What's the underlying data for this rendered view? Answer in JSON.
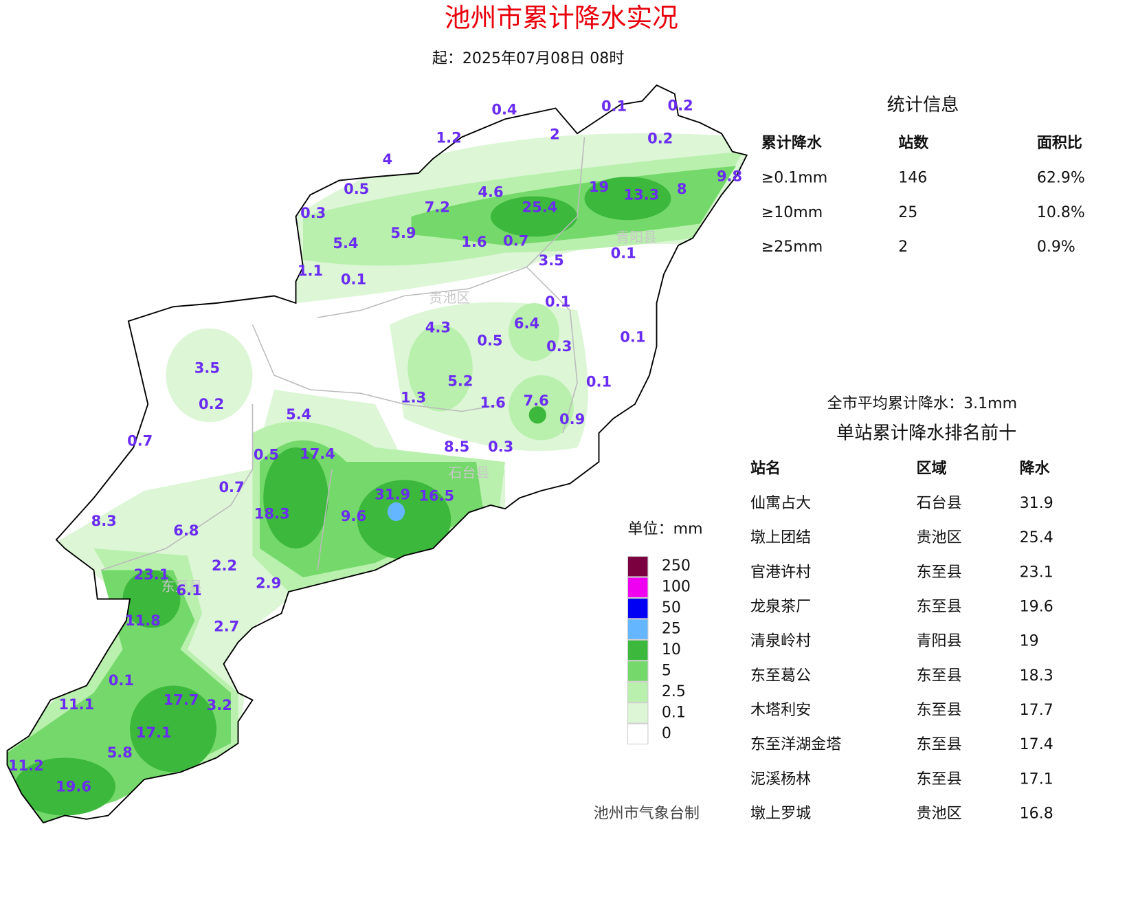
{
  "title": "池州市累计降水实况",
  "subtitle": "起：2025年07月08日 08时",
  "districts": [
    "贵池区",
    "青阳县",
    "石台县",
    "东至县"
  ],
  "stations": [
    0.4,
    0.1,
    0.2,
    1.2,
    2,
    0.2,
    4,
    0.5,
    4.6,
    19,
    13.3,
    8,
    9.8,
    0.3,
    7.2,
    25.4,
    5.9,
    5.4,
    1.6,
    0.7,
    0.1,
    3.5,
    1.1,
    0.1,
    0.1,
    4.3,
    6.4,
    0.5,
    0.3,
    0.1,
    3.5,
    5.2,
    0.1,
    1.3,
    1.6,
    7.6,
    0.2,
    5.4,
    0.9,
    0.7,
    8.5,
    0.3,
    0.5,
    17.4,
    0.7,
    31.9,
    16.5,
    18.3,
    9.6,
    8.3,
    6.8,
    2.2,
    23.1,
    6.1,
    2.9,
    11.8,
    2.7,
    0.1,
    11.1,
    17.7,
    3.2,
    17.1,
    5.8,
    11.2,
    19.6
  ],
  "legend": {
    "title": "单位：mm",
    "items": [
      {
        "value": 250,
        "color": "#7a0040"
      },
      {
        "value": 100,
        "color": "#f000f0"
      },
      {
        "value": 50,
        "color": "#0000f5"
      },
      {
        "value": 25,
        "color": "#63b6ff"
      },
      {
        "value": 10,
        "color": "#3cb83c"
      },
      {
        "value": 5,
        "color": "#74d96a"
      },
      {
        "value": 2.5,
        "color": "#b9f0ad"
      },
      {
        "value": 0.1,
        "color": "#dcf6d6"
      },
      {
        "value": 0,
        "color": "#ffffff"
      }
    ]
  },
  "stats": {
    "title": "统计信息",
    "header": [
      "累计降水",
      "站数",
      "面积比"
    ],
    "rows": [
      [
        "≥0.1mm",
        "146",
        "62.9%"
      ],
      [
        "≥10mm",
        "25",
        "10.8%"
      ],
      [
        "≥25mm",
        "2",
        "0.9%"
      ]
    ]
  },
  "average": "全市平均累计降水：3.1mm",
  "ranking": {
    "title": "单站累计降水排名前十",
    "header": [
      "站名",
      "区域",
      "降水"
    ],
    "rows": [
      [
        "仙寓占大",
        "石台县",
        "31.9"
      ],
      [
        "墩上团结",
        "贵池区",
        "25.4"
      ],
      [
        "官港许村",
        "东至县",
        "23.1"
      ],
      [
        "龙泉茶厂",
        "东至县",
        "19.6"
      ],
      [
        "清泉岭村",
        "青阳县",
        "19"
      ],
      [
        "东至葛公",
        "东至县",
        "18.3"
      ],
      [
        "木塔利安",
        "东至县",
        "17.7"
      ],
      [
        "东至洋湖金塔",
        "东至县",
        "17.4"
      ],
      [
        "泥溪杨林",
        "东至县",
        "17.1"
      ],
      [
        "墩上罗城",
        "贵池区",
        "16.8"
      ]
    ]
  },
  "footer": "池州市气象台制"
}
